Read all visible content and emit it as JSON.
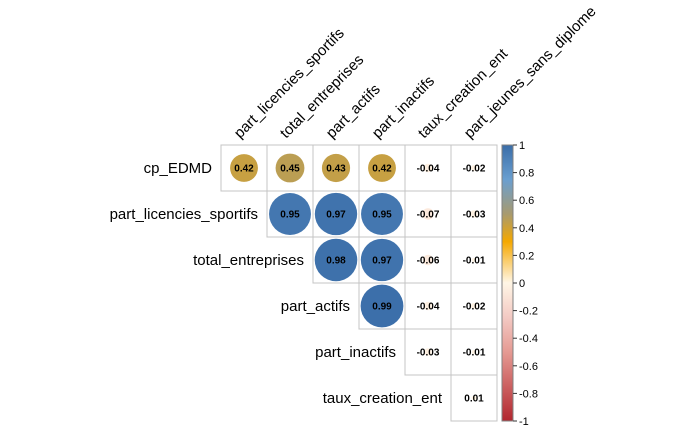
{
  "chart_data": {
    "type": "heatmap",
    "variant": "upper-triangle correlation plot with circles",
    "row_labels": [
      "cp_EDMD",
      "part_licencies_sportifs",
      "total_entreprises",
      "part_actifs",
      "part_inactifs",
      "taux_creation_ent"
    ],
    "col_labels": [
      "part_licencies_sportifs",
      "total_entreprises",
      "part_actifs",
      "part_inactifs",
      "taux_creation_ent",
      "part_jeunes_sans_diplome"
    ],
    "cells": [
      {
        "row": 0,
        "col": 0,
        "value": 0.42,
        "label": "0.42"
      },
      {
        "row": 0,
        "col": 1,
        "value": 0.45,
        "label": "0.45"
      },
      {
        "row": 0,
        "col": 2,
        "value": 0.43,
        "label": "0.43"
      },
      {
        "row": 0,
        "col": 3,
        "value": 0.42,
        "label": "0.42"
      },
      {
        "row": 0,
        "col": 4,
        "value": -0.04,
        "label": "-0.04"
      },
      {
        "row": 0,
        "col": 5,
        "value": -0.02,
        "label": "-0.02"
      },
      {
        "row": 1,
        "col": 1,
        "value": 0.95,
        "label": "0.95"
      },
      {
        "row": 1,
        "col": 2,
        "value": 0.97,
        "label": "0.97"
      },
      {
        "row": 1,
        "col": 3,
        "value": 0.95,
        "label": "0.95"
      },
      {
        "row": 1,
        "col": 4,
        "value": -0.07,
        "label": "-0.07"
      },
      {
        "row": 1,
        "col": 5,
        "value": -0.03,
        "label": "-0.03"
      },
      {
        "row": 2,
        "col": 2,
        "value": 0.98,
        "label": "0.98"
      },
      {
        "row": 2,
        "col": 3,
        "value": 0.97,
        "label": "0.97"
      },
      {
        "row": 2,
        "col": 4,
        "value": -0.06,
        "label": "-0.06"
      },
      {
        "row": 2,
        "col": 5,
        "value": -0.01,
        "label": "-0.01"
      },
      {
        "row": 3,
        "col": 3,
        "value": 0.99,
        "label": "0.99"
      },
      {
        "row": 3,
        "col": 4,
        "value": -0.04,
        "label": "-0.04"
      },
      {
        "row": 3,
        "col": 5,
        "value": -0.02,
        "label": "-0.02"
      },
      {
        "row": 4,
        "col": 4,
        "value": -0.03,
        "label": "-0.03"
      },
      {
        "row": 4,
        "col": 5,
        "value": -0.01,
        "label": "-0.01"
      },
      {
        "row": 5,
        "col": 5,
        "value": 0.01,
        "label": "0.01"
      }
    ],
    "colorbar": {
      "range": [
        -1,
        1
      ],
      "ticks": [
        "1",
        "0.8",
        "0.6",
        "0.4",
        "0.2",
        "0",
        "-0.2",
        "-0.4",
        "-0.6",
        "-0.8",
        "-1"
      ],
      "stops": [
        {
          "value": 1.0,
          "color": "#3a6da8"
        },
        {
          "value": 0.75,
          "color": "#6a9fd0"
        },
        {
          "value": 0.5,
          "color": "#a89a6e"
        },
        {
          "value": 0.3,
          "color": "#f5a800"
        },
        {
          "value": 0.0,
          "color": "#fff6e6"
        },
        {
          "value": -0.25,
          "color": "#f3c9c3"
        },
        {
          "value": -0.5,
          "color": "#e59a93"
        },
        {
          "value": -1.0,
          "color": "#b2262e"
        }
      ]
    },
    "grid": true,
    "title": "",
    "xlabel": "",
    "ylabel": ""
  }
}
